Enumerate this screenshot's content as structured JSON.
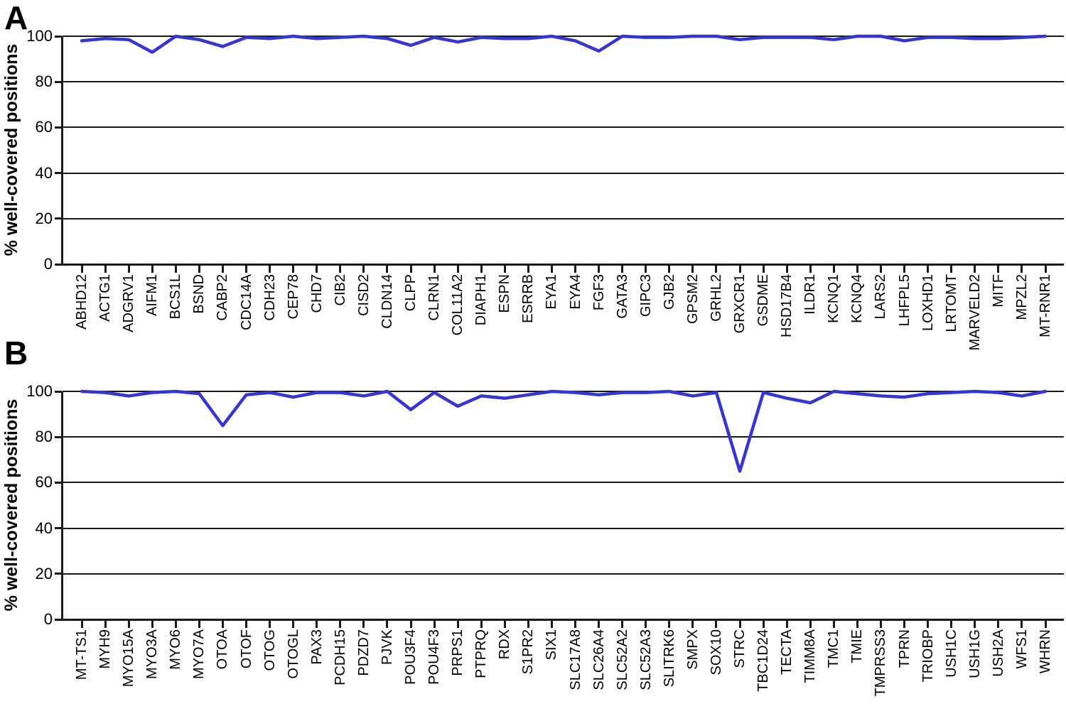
{
  "colors": {
    "line": "#3535d3",
    "axis": "#191919",
    "background": "#ffffff",
    "text": "#000000"
  },
  "chart_data": [
    {
      "type": "line",
      "title": "A",
      "ylabel": "% well-covered positions",
      "xlabel": "",
      "ylim": [
        0,
        100
      ],
      "yticks": [
        0,
        20,
        40,
        60,
        80,
        100
      ],
      "grid": true,
      "legend": "none",
      "line_color": "#3535d3",
      "categories": [
        "ABHD12",
        "ACTG1",
        "ADGRV1",
        "AIFM1",
        "BCS1L",
        "BSND",
        "CABP2",
        "CDC14A",
        "CDH23",
        "CEP78",
        "CHD7",
        "CIB2",
        "CISD2",
        "CLDN14",
        "CLPP",
        "CLRN1",
        "COL11A2",
        "DIAPH1",
        "ESPN",
        "ESRRB",
        "EYA1",
        "EYA4",
        "FGF3",
        "GATA3",
        "GIPC3",
        "GJB2",
        "GPSM2",
        "GRHL2",
        "GRXCR1",
        "GSDME",
        "HSD17B4",
        "ILDR1",
        "KCNQ1",
        "KCNQ4",
        "LARS2",
        "LHFPL5",
        "LOXHD1",
        "LRTOMT",
        "MARVELD2",
        "MITF",
        "MPZL2",
        "MT-RNR1"
      ],
      "values": [
        98,
        99,
        98.5,
        93,
        100,
        98.5,
        95.5,
        99.5,
        99,
        100,
        99,
        99.5,
        100,
        99,
        96,
        99.5,
        97.5,
        99.5,
        99,
        99,
        100,
        98,
        93.5,
        100,
        99.5,
        99.5,
        100,
        100,
        98.5,
        99.5,
        99.5,
        99.5,
        98.5,
        100,
        100,
        98,
        99.5,
        99.5,
        99,
        99,
        99.5,
        100
      ]
    },
    {
      "type": "line",
      "title": "B",
      "ylabel": "% well-covered positions",
      "xlabel": "",
      "ylim": [
        0,
        100
      ],
      "yticks": [
        0,
        20,
        40,
        60,
        80,
        100
      ],
      "grid": true,
      "legend": "none",
      "line_color": "#3535d3",
      "categories": [
        "MT-TS1",
        "MYH9",
        "MYO15A",
        "MYO3A",
        "MYO6",
        "MYO7A",
        "OTOA",
        "OTOF",
        "OTOG",
        "OTOGL",
        "PAX3",
        "PCDH15",
        "PDZD7",
        "PJVK",
        "POU3F4",
        "POU4F3",
        "PRPS1",
        "PTPRQ",
        "RDX",
        "S1PR2",
        "SIX1",
        "SLC17A8",
        "SLC26A4",
        "SLC52A2",
        "SLC52A3",
        "SLITRK6",
        "SMPX",
        "SOX10",
        "STRC",
        "TBC1D24",
        "TECTA",
        "TIMM8A",
        "TMC1",
        "TMIE",
        "TMPRSS3",
        "TPRN",
        "TRIOBP",
        "USH1C",
        "USH1G",
        "USH2A",
        "WFS1",
        "WHRN"
      ],
      "values": [
        100,
        99.5,
        98,
        99.5,
        100,
        99,
        85,
        98.5,
        99.5,
        97.5,
        99.5,
        99.5,
        98,
        100,
        92,
        99.5,
        93.5,
        98,
        97,
        98.5,
        100,
        99.5,
        98.5,
        99.5,
        99.5,
        100,
        98,
        99.5,
        65,
        99.5,
        97,
        95,
        100,
        99,
        98,
        97.5,
        99,
        99.5,
        100,
        99.5,
        98,
        100
      ]
    }
  ]
}
